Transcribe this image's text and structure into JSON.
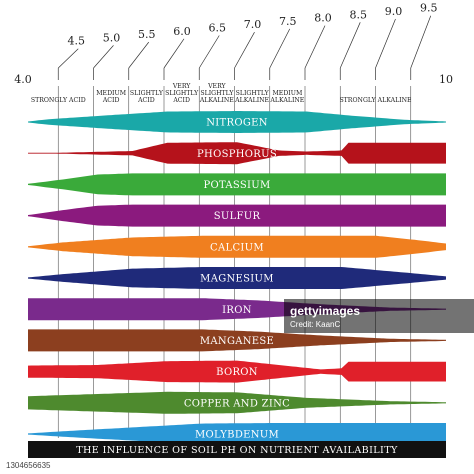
{
  "chart_data": {
    "type": "area",
    "title": "THE INFLUENCE OF SOIL PH ON NUTRIENT AVAILABILITY",
    "xlim": [
      4.0,
      10
    ],
    "ticks": [
      "4.0",
      "4.5",
      "5.0",
      "5.5",
      "6.0",
      "6.5",
      "7.0",
      "7.5",
      "8.0",
      "8.5",
      "9.0",
      "9.5",
      "10"
    ],
    "zones": [
      {
        "lines": [
          "STRONGLY ACID"
        ],
        "from": 4.0,
        "to": 5.0
      },
      {
        "lines": [
          "MEDIUM",
          "ACID"
        ],
        "from": 5.0,
        "to": 5.5
      },
      {
        "lines": [
          "SLIGHTLY",
          "ACID"
        ],
        "from": 5.5,
        "to": 6.0
      },
      {
        "lines": [
          "VERY",
          "SLIGHTLY",
          "ACID"
        ],
        "from": 6.0,
        "to": 6.5
      },
      {
        "lines": [
          "VERY",
          "SLIGHTLY",
          "ALKALINE"
        ],
        "from": 6.5,
        "to": 7.0
      },
      {
        "lines": [
          "SLIGHTLY",
          "ALKALINE"
        ],
        "from": 7.0,
        "to": 7.5
      },
      {
        "lines": [
          "MEDIUM",
          "ALKALINE"
        ],
        "from": 7.5,
        "to": 8.0
      },
      {
        "lines": [
          "STRONGLY ALKALINE"
        ],
        "from": 8.0,
        "to": 10
      }
    ],
    "series": [
      {
        "name": "NITROGEN",
        "color": "#1aa8a8",
        "availability": [
          [
            4.0,
            0.05
          ],
          [
            4.3,
            0.25
          ],
          [
            5.0,
            0.55
          ],
          [
            6.0,
            0.95
          ],
          [
            7.0,
            1.0
          ],
          [
            8.0,
            0.95
          ],
          [
            8.6,
            0.6
          ],
          [
            9.4,
            0.2
          ],
          [
            10,
            0.05
          ]
        ]
      },
      {
        "name": "PHOSPHORUS",
        "color": "#b5121b",
        "availability": [
          [
            4.0,
            0.0
          ],
          [
            4.5,
            0.05
          ],
          [
            5.5,
            0.2
          ],
          [
            6.0,
            0.95
          ],
          [
            7.0,
            1.0
          ],
          [
            7.6,
            0.25
          ],
          [
            8.0,
            0.15
          ],
          [
            8.5,
            0.25
          ],
          [
            8.6,
            0.95
          ],
          [
            10,
            0.95
          ]
        ]
      },
      {
        "name": "POTASSIUM",
        "color": "#3aaa3a",
        "availability": [
          [
            4.0,
            0.05
          ],
          [
            4.5,
            0.45
          ],
          [
            5.0,
            0.9
          ],
          [
            5.5,
            1.0
          ],
          [
            10,
            1.0
          ]
        ]
      },
      {
        "name": "SULFUR",
        "color": "#8b1a7e",
        "availability": [
          [
            4.0,
            0.05
          ],
          [
            4.5,
            0.5
          ],
          [
            5.0,
            0.9
          ],
          [
            5.5,
            1.0
          ],
          [
            10,
            1.0
          ]
        ]
      },
      {
        "name": "CALCIUM",
        "color": "#f07f1f",
        "availability": [
          [
            4.0,
            0.05
          ],
          [
            4.5,
            0.4
          ],
          [
            5.5,
            0.85
          ],
          [
            6.5,
            1.0
          ],
          [
            9.0,
            1.0
          ],
          [
            9.6,
            0.6
          ],
          [
            10,
            0.3
          ]
        ]
      },
      {
        "name": "MAGNESIUM",
        "color": "#1f2a7a",
        "availability": [
          [
            4.0,
            0.05
          ],
          [
            4.5,
            0.35
          ],
          [
            5.5,
            0.85
          ],
          [
            6.5,
            1.0
          ],
          [
            8.5,
            1.0
          ],
          [
            9.4,
            0.5
          ],
          [
            10,
            0.15
          ]
        ]
      },
      {
        "name": "IRON",
        "color": "#7a2a8c",
        "availability": [
          [
            4.0,
            1.0
          ],
          [
            6.5,
            1.0
          ],
          [
            7.3,
            0.8
          ],
          [
            8.2,
            0.45
          ],
          [
            9.2,
            0.15
          ],
          [
            10,
            0.05
          ]
        ]
      },
      {
        "name": "MANGANESE",
        "color": "#8c3f1f",
        "availability": [
          [
            4.0,
            1.0
          ],
          [
            6.5,
            1.0
          ],
          [
            7.3,
            0.8
          ],
          [
            8.2,
            0.45
          ],
          [
            9.2,
            0.15
          ],
          [
            10,
            0.05
          ]
        ]
      },
      {
        "name": "BORON",
        "color": "#e0202a",
        "availability": [
          [
            4.0,
            0.55
          ],
          [
            5.0,
            0.6
          ],
          [
            6.0,
            0.95
          ],
          [
            7.0,
            1.0
          ],
          [
            7.6,
            0.6
          ],
          [
            8.2,
            0.2
          ],
          [
            8.5,
            0.3
          ],
          [
            8.6,
            0.9
          ],
          [
            10,
            0.9
          ]
        ]
      },
      {
        "name": "COPPER AND ZINC",
        "color": "#4e8a2e",
        "availability": [
          [
            4.0,
            0.6
          ],
          [
            5.0,
            0.8
          ],
          [
            6.0,
            1.0
          ],
          [
            7.0,
            0.95
          ],
          [
            8.0,
            0.45
          ],
          [
            9.2,
            0.15
          ],
          [
            10,
            0.05
          ]
        ]
      },
      {
        "name": "MOLYBDENUM",
        "color": "#2a98d6",
        "availability": [
          [
            4.0,
            0.05
          ],
          [
            4.5,
            0.25
          ],
          [
            5.5,
            0.6
          ],
          [
            6.5,
            0.95
          ],
          [
            7.5,
            1.0
          ],
          [
            10,
            1.0
          ]
        ]
      }
    ]
  },
  "watermark": {
    "brand": "gettyimages",
    "credit": "Credit: KaanC",
    "image_id": "1304656635"
  }
}
